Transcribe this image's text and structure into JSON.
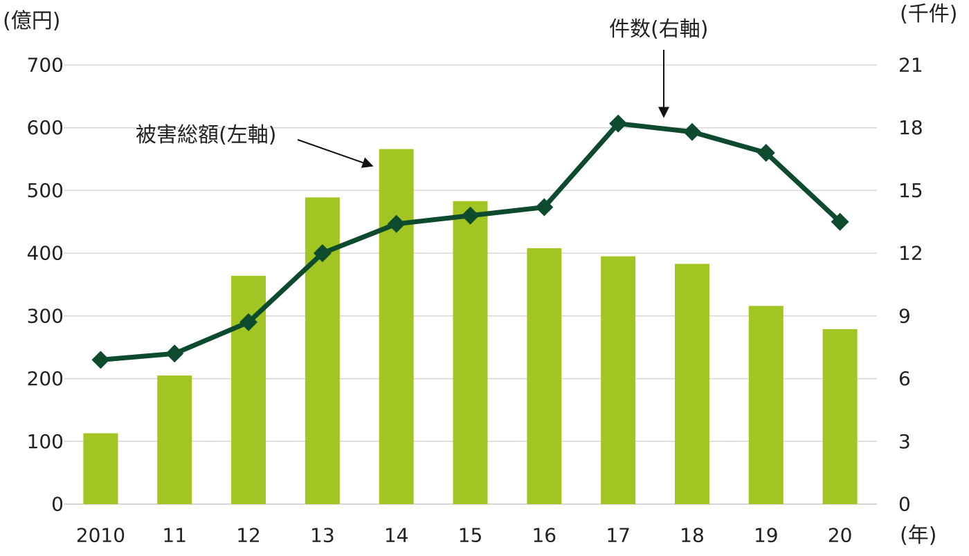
{
  "chart_data": {
    "type": "bar+line",
    "categories": [
      "2010",
      "11",
      "12",
      "13",
      "14",
      "15",
      "16",
      "17",
      "18",
      "19",
      "20"
    ],
    "series": [
      {
        "name": "被害総額(左軸)",
        "type": "bar",
        "axis": "left",
        "values": [
          113,
          205,
          364,
          489,
          566,
          483,
          408,
          395,
          383,
          316,
          279
        ]
      },
      {
        "name": "件数(右軸)",
        "type": "line",
        "axis": "right",
        "values": [
          6.9,
          7.2,
          8.7,
          12.0,
          13.4,
          13.8,
          14.2,
          18.2,
          17.8,
          16.8,
          13.5
        ]
      }
    ],
    "y_left": {
      "unit": "(億円)",
      "min": 0,
      "max": 700,
      "ticks": [
        0,
        100,
        200,
        300,
        400,
        500,
        600,
        700
      ]
    },
    "y_right": {
      "unit": "(千件)",
      "min": 0,
      "max": 21,
      "ticks": [
        0,
        3,
        6,
        9,
        12,
        15,
        18,
        21
      ]
    },
    "x_unit": "(年)",
    "grid": true,
    "colors": {
      "bar": "#a2c523",
      "line": "#0d4a2e",
      "grid": "#d6d6d6",
      "text": "#222222"
    }
  }
}
